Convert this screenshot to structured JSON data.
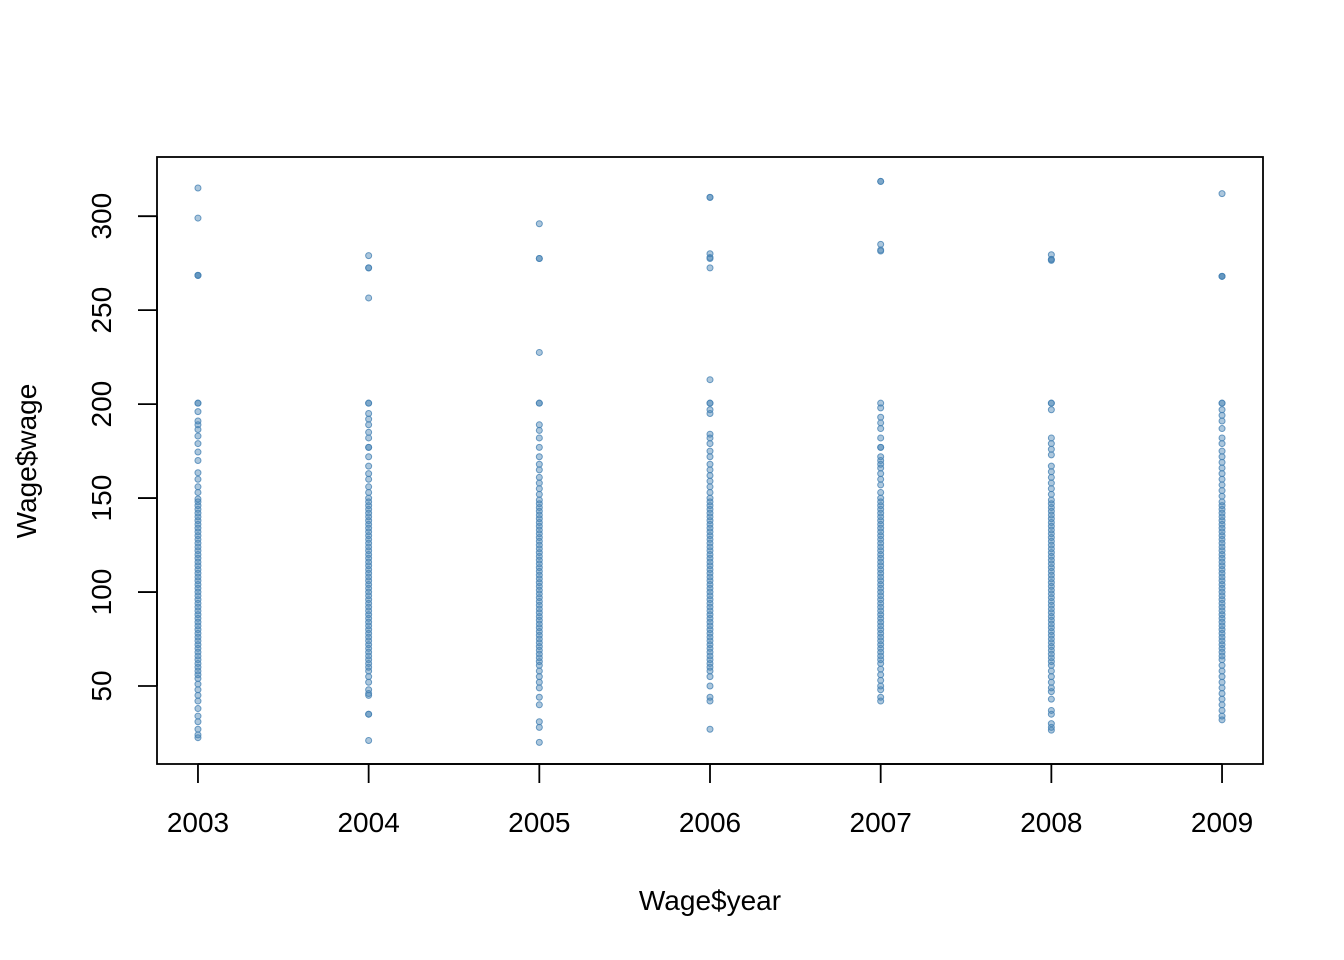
{
  "chart_data": {
    "type": "scatter",
    "xlabel": "Wage$year",
    "ylabel": "Wage$wage",
    "x_ticks": [
      2003,
      2004,
      2005,
      2006,
      2007,
      2008,
      2009
    ],
    "y_ticks": [
      50,
      100,
      150,
      200,
      250,
      300
    ],
    "xlim": [
      2002.76,
      2009.24
    ],
    "ylim": [
      8.5,
      331.5
    ],
    "grid": false,
    "legend": "none",
    "point_color": "#4682B4",
    "point_alpha": 0.45,
    "series": [
      {
        "points": [
          {
            "x": 2003,
            "values": [
              315,
              299,
              268.5,
              268.5,
              268.5,
              200.5,
              200.5,
              196,
              191,
              189,
              186.5,
              183,
              179,
              174.5,
              170,
              163.5,
              160,
              156,
              153,
              149.5,
              148,
              146,
              144,
              142,
              140,
              138,
              136,
              134,
              132,
              130,
              128,
              126,
              124,
              122,
              120,
              118,
              116,
              114,
              112,
              110,
              108,
              106,
              104,
              102,
              100,
              98,
              96,
              94,
              92,
              90,
              88,
              86,
              84,
              82,
              80,
              78,
              76,
              74,
              72,
              70,
              68,
              66,
              64,
              62,
              60,
              58,
              56,
              54,
              51,
              48,
              45,
              42,
              38,
              34,
              31,
              27,
              24,
              22.5
            ]
          },
          {
            "x": 2004,
            "values": [
              279,
              272.5,
              272.5,
              256.5,
              200.5,
              200.5,
              195,
              192,
              189,
              185,
              182,
              177,
              177,
              172,
              167,
              163,
              160,
              156,
              153,
              150,
              148,
              146,
              144,
              142,
              140,
              138,
              136,
              134,
              132,
              130,
              128,
              126,
              124,
              122,
              120,
              118,
              116,
              114,
              112,
              110,
              108,
              106,
              104,
              102,
              100,
              98,
              96,
              94,
              92,
              90,
              88,
              86,
              84,
              82,
              80,
              78,
              76,
              74,
              72,
              70,
              68,
              66,
              64,
              62,
              60,
              58,
              55,
              52,
              48,
              46,
              45,
              35,
              35,
              21
            ]
          },
          {
            "x": 2005,
            "values": [
              296,
              277.5,
              277.5,
              227.5,
              200.5,
              200.5,
              189,
              186,
              182,
              177,
              172,
              168,
              165,
              161,
              158,
              155,
              152,
              149,
              147,
              145,
              143,
              141,
              139,
              137,
              135,
              133,
              131,
              129,
              127,
              125,
              123,
              121,
              119,
              117,
              115,
              113,
              111,
              109,
              107,
              105,
              103,
              101,
              99,
              97,
              95,
              93,
              91,
              89,
              87,
              85,
              83,
              81,
              79,
              77,
              75,
              73,
              71,
              69,
              67,
              65,
              63,
              61,
              58,
              55,
              52,
              49,
              44,
              40,
              31,
              28,
              20
            ]
          },
          {
            "x": 2006,
            "values": [
              310,
              310,
              280,
              278,
              277.5,
              272.5,
              213,
              200.5,
              200.5,
              197,
              195,
              184,
              182,
              179,
              175,
              172,
              168,
              165,
              162,
              159,
              156,
              153,
              150,
              148,
              146,
              144,
              142,
              140,
              138,
              136,
              134,
              132,
              130,
              128,
              126,
              124,
              122,
              120,
              118,
              116,
              114,
              112,
              110,
              108,
              106,
              104,
              102,
              100,
              98,
              96,
              94,
              92,
              90,
              88,
              86,
              84,
              82,
              80,
              78,
              76,
              74,
              72,
              70,
              68,
              66,
              64,
              62,
              60,
              58,
              55,
              50,
              44,
              42,
              27
            ]
          },
          {
            "x": 2007,
            "values": [
              318.5,
              318.5,
              285,
              282,
              281.5,
              200.5,
              198,
              193,
              190,
              187,
              182,
              177,
              177,
              172,
              170,
              168,
              166,
              163,
              160,
              157,
              153,
              150,
              148,
              146,
              144,
              142,
              140,
              138,
              136,
              134,
              132,
              130,
              128,
              126,
              124,
              122,
              120,
              118,
              116,
              114,
              112,
              110,
              108,
              106,
              104,
              102,
              100,
              98,
              96,
              94,
              92,
              90,
              88,
              86,
              84,
              82,
              80,
              78,
              76,
              74,
              72,
              70,
              68,
              66,
              64,
              62,
              59,
              56,
              53,
              50,
              48,
              44,
              42
            ]
          },
          {
            "x": 2008,
            "values": [
              279.5,
              277,
              277,
              276.5,
              200.5,
              200.5,
              197,
              182,
              179,
              176,
              173,
              167,
              164,
              161,
              158,
              155,
              152,
              149,
              147,
              145,
              143,
              141,
              139,
              137,
              135,
              133,
              131,
              129,
              127,
              125,
              123,
              121,
              119,
              117,
              115,
              113,
              111,
              109,
              107,
              105,
              103,
              101,
              99,
              97,
              95,
              93,
              91,
              89,
              87,
              85,
              83,
              81,
              79,
              77,
              75,
              73,
              71,
              69,
              67,
              65,
              63,
              61,
              58,
              55,
              52,
              49,
              47,
              43,
              37,
              35,
              30,
              28,
              26.5
            ]
          },
          {
            "x": 2009,
            "values": [
              312,
              268,
              268,
              268,
              200.5,
              200.5,
              197,
              194,
              191,
              187,
              182,
              179,
              175,
              172,
              169,
              166,
              163,
              160,
              157,
              154,
              151,
              148,
              146,
              144,
              142,
              140,
              138,
              136,
              134,
              132,
              130,
              128,
              126,
              124,
              122,
              120,
              118,
              116,
              114,
              112,
              110,
              108,
              106,
              104,
              102,
              100,
              98,
              96,
              94,
              92,
              90,
              88,
              86,
              84,
              82,
              80,
              78,
              76,
              74,
              72,
              70,
              68,
              66,
              64,
              61,
              58,
              55,
              52,
              49,
              46,
              43,
              40,
              37,
              34,
              32
            ]
          }
        ]
      }
    ]
  }
}
